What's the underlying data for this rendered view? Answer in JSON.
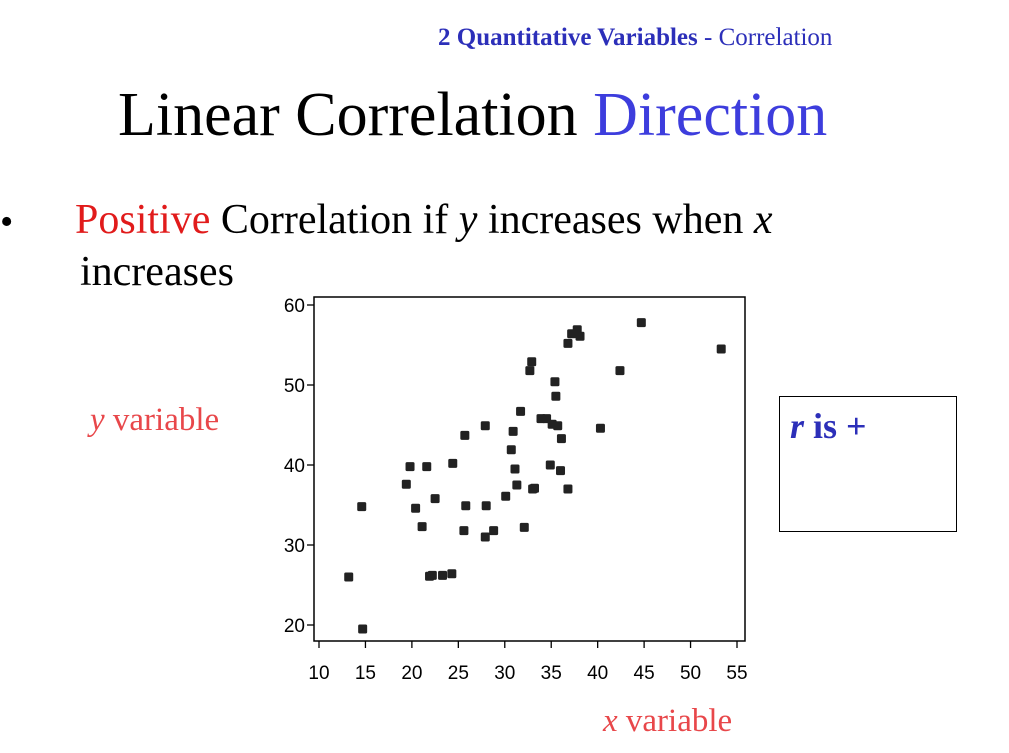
{
  "header": {
    "topic_bold": "2 Quantitative Variables",
    "topic_rest": " - Correlation"
  },
  "title": {
    "main": "Linear Correlation",
    "accent": "Direction"
  },
  "bullet": {
    "symbol": "•",
    "positive": "Positive",
    "text_a": " Correlation if ",
    "var_y": "y",
    "text_b": " increases when ",
    "var_x": "x",
    "line2": "increases"
  },
  "labels": {
    "y_var": "y",
    "y_word": " variable",
    "x_var": "x",
    "x_word": " variable"
  },
  "rbox": {
    "r": "r",
    "text": " is +"
  },
  "colors": {
    "header": "#2c2fb9",
    "accent": "#3d3ddd",
    "positive": "#e11b1b",
    "axis_labels": "#e8474a"
  },
  "chart_data": {
    "type": "scatter",
    "xlim": [
      10,
      57
    ],
    "ylim": [
      18,
      61
    ],
    "xticks": [
      10,
      15,
      20,
      25,
      30,
      35,
      40,
      45,
      50,
      55
    ],
    "yticks": [
      20,
      30,
      40,
      50,
      60
    ],
    "grid": false,
    "points": [
      [
        13.2,
        26.0
      ],
      [
        14.7,
        19.5
      ],
      [
        14.6,
        34.8
      ],
      [
        19.4,
        37.6
      ],
      [
        19.8,
        39.8
      ],
      [
        20.4,
        34.6
      ],
      [
        21.1,
        32.3
      ],
      [
        21.6,
        39.8
      ],
      [
        21.9,
        26.1
      ],
      [
        22.2,
        26.2
      ],
      [
        22.5,
        35.8
      ],
      [
        23.3,
        26.2
      ],
      [
        24.3,
        26.4
      ],
      [
        24.4,
        40.2
      ],
      [
        25.6,
        31.8
      ],
      [
        25.7,
        43.7
      ],
      [
        25.8,
        34.9
      ],
      [
        27.9,
        31.0
      ],
      [
        27.9,
        44.9
      ],
      [
        28.0,
        34.9
      ],
      [
        28.8,
        31.8
      ],
      [
        30.1,
        36.1
      ],
      [
        30.7,
        41.9
      ],
      [
        30.9,
        44.2
      ],
      [
        31.1,
        39.5
      ],
      [
        31.3,
        37.5
      ],
      [
        31.7,
        46.7
      ],
      [
        32.1,
        32.2
      ],
      [
        32.7,
        51.8
      ],
      [
        32.9,
        52.9
      ],
      [
        33.0,
        37.0
      ],
      [
        33.2,
        37.1
      ],
      [
        33.9,
        45.8
      ],
      [
        34.5,
        45.8
      ],
      [
        34.9,
        40.0
      ],
      [
        35.1,
        45.1
      ],
      [
        35.4,
        50.4
      ],
      [
        35.5,
        48.6
      ],
      [
        35.7,
        44.9
      ],
      [
        36.0,
        39.3
      ],
      [
        36.1,
        43.3
      ],
      [
        36.8,
        37.0
      ],
      [
        36.8,
        55.2
      ],
      [
        37.2,
        56.4
      ],
      [
        37.8,
        56.9
      ],
      [
        38.1,
        56.1
      ],
      [
        40.3,
        44.6
      ],
      [
        42.4,
        51.8
      ],
      [
        44.7,
        57.8
      ],
      [
        53.3,
        54.5
      ]
    ]
  }
}
